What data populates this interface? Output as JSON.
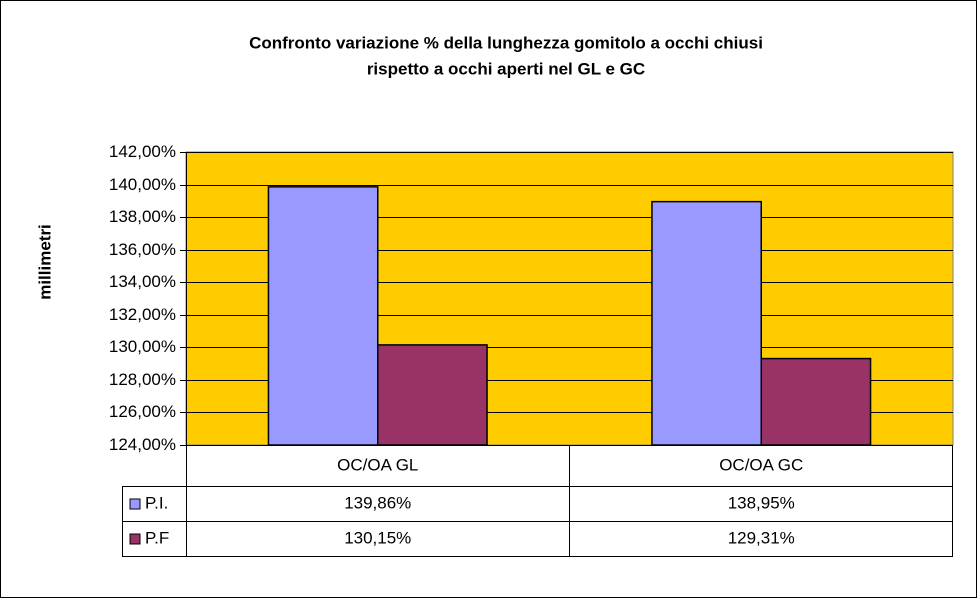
{
  "chart_data": {
    "type": "bar",
    "title": [
      "Confronto variazione  % della lunghezza gomitolo a occhi chiusi",
      "rispetto a occhi aperti nel GL e GC"
    ],
    "y_label": "millimetri",
    "categories": [
      "OC/OA GL",
      "OC/OA GC"
    ],
    "series": [
      {
        "name": "P.I.",
        "color": "#9999ff",
        "values": [
          139.86,
          138.95
        ],
        "value_labels": [
          "139,86%",
          "138,95%"
        ]
      },
      {
        "name": "P.F",
        "color": "#993366",
        "values": [
          130.15,
          129.31
        ],
        "value_labels": [
          "130,15%",
          "129,31%"
        ]
      }
    ],
    "ylim": [
      124,
      142
    ],
    "yticks": [
      {
        "value": 124,
        "label": "124,00%"
      },
      {
        "value": 126,
        "label": "126,00%"
      },
      {
        "value": 128,
        "label": "128,00%"
      },
      {
        "value": 130,
        "label": "130,00%"
      },
      {
        "value": 132,
        "label": "132,00%"
      },
      {
        "value": 134,
        "label": "134,00%"
      },
      {
        "value": 136,
        "label": "136,00%"
      },
      {
        "value": 138,
        "label": "138,00%"
      },
      {
        "value": 140,
        "label": "140,00%"
      },
      {
        "value": 142,
        "label": "142,00%"
      }
    ],
    "grid": true,
    "plot_background": "#ffcc00"
  }
}
